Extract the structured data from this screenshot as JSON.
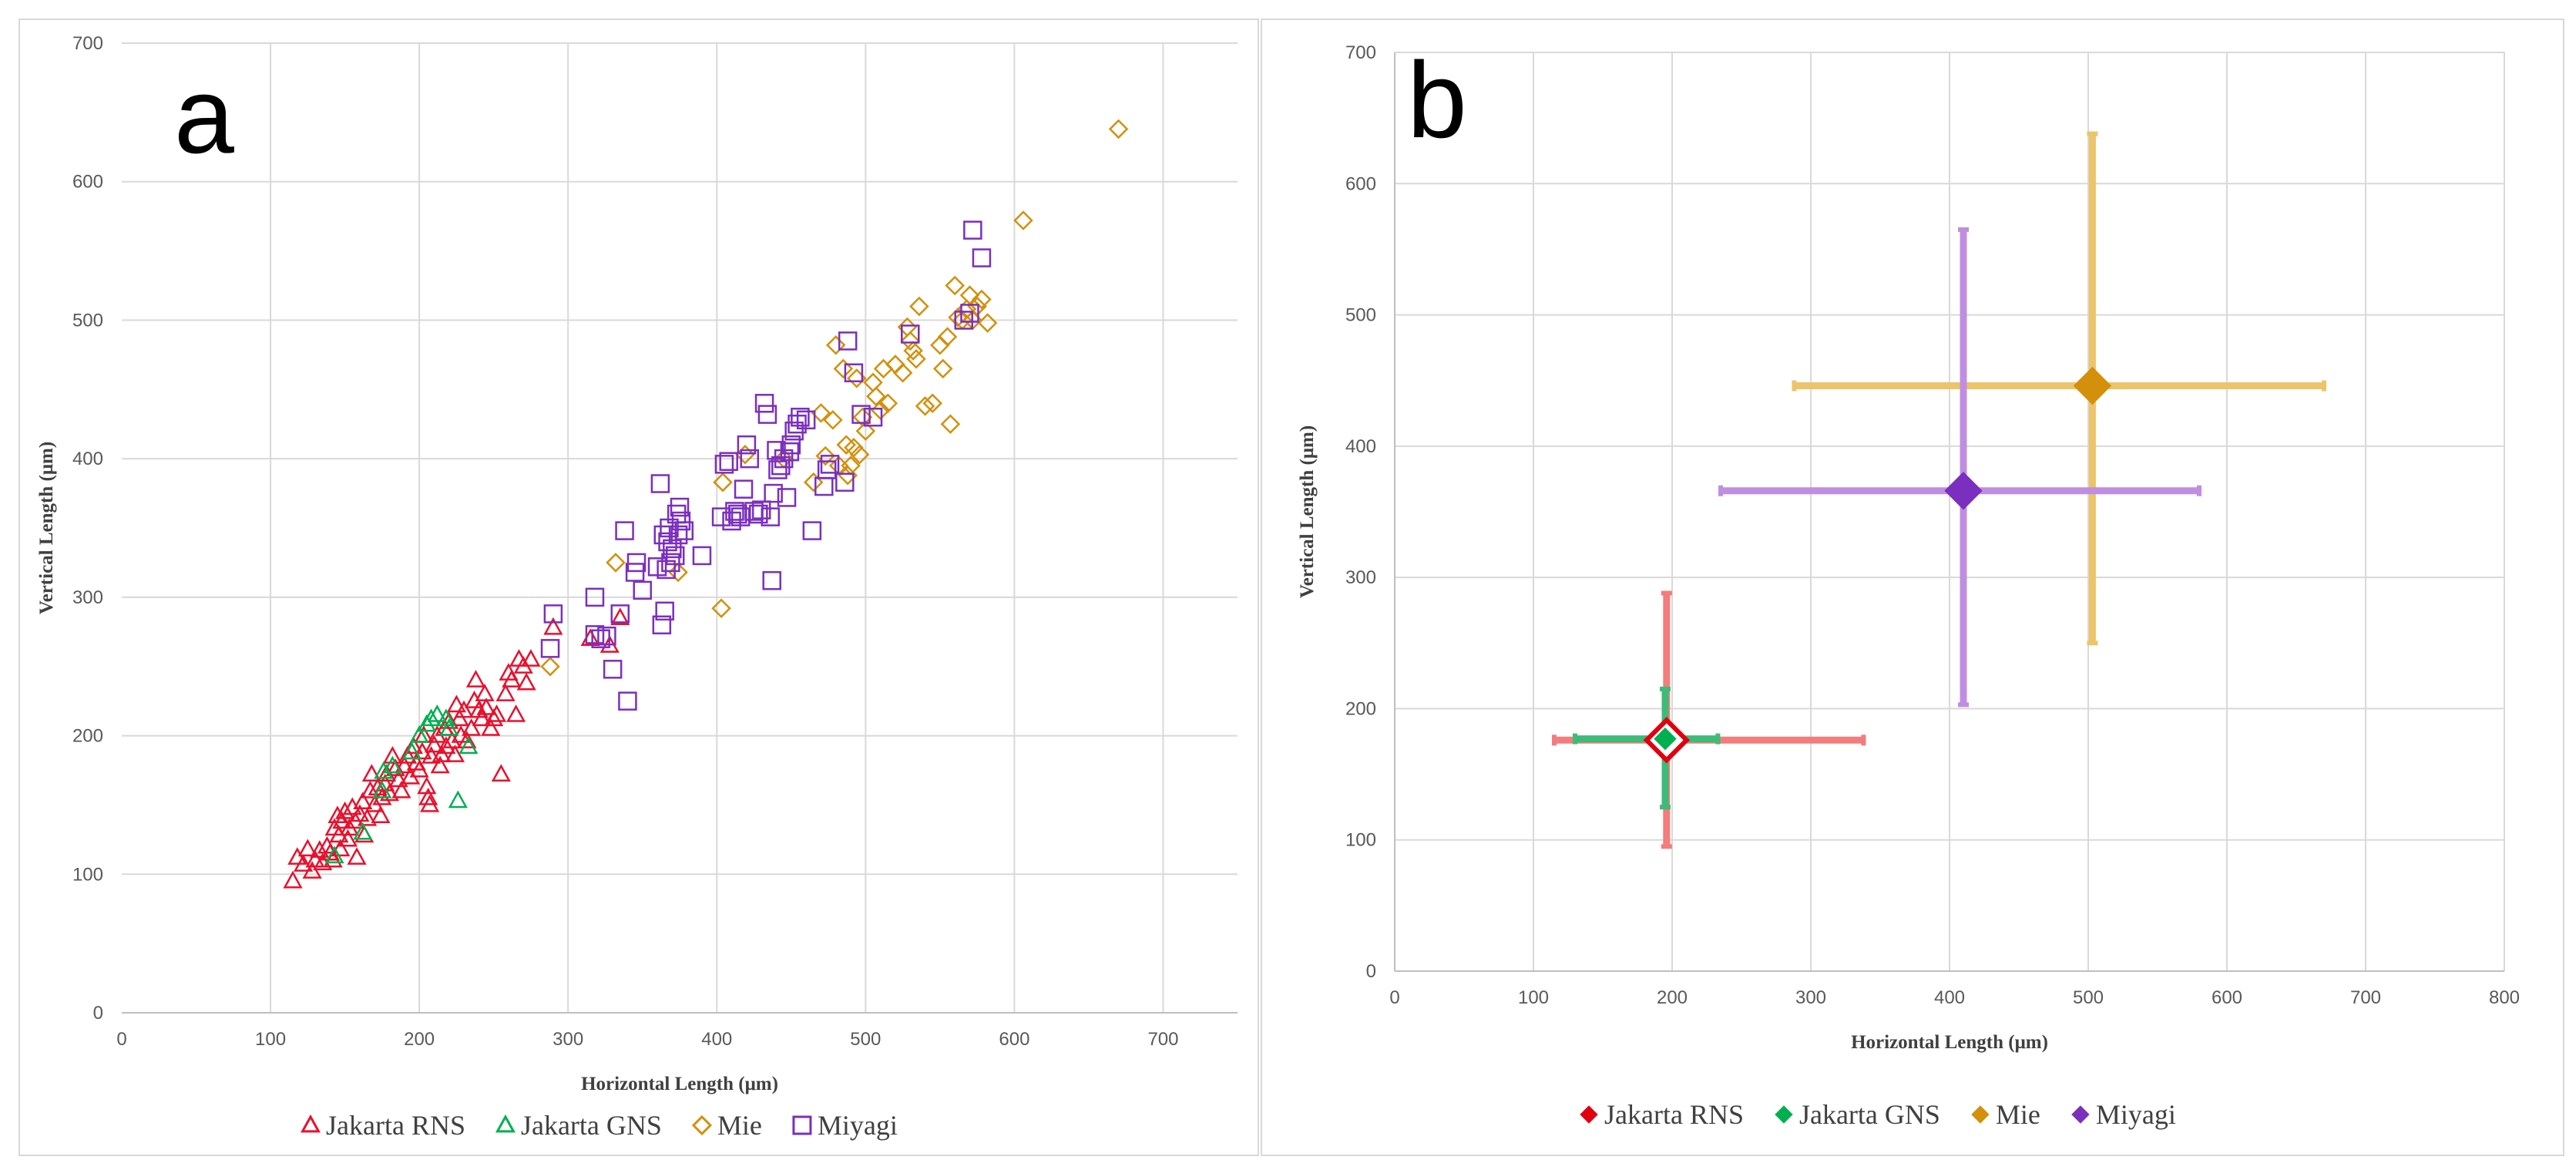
{
  "chart_data": [
    {
      "panel": "a",
      "type": "scatter",
      "panel_label": "a",
      "xlabel": "Horizontal Length (μm)",
      "ylabel": "Vertical Length (μm)",
      "xlim": [
        0,
        750
      ],
      "ylim": [
        0,
        700
      ],
      "xticks": [
        0,
        100,
        200,
        300,
        400,
        500,
        600,
        700
      ],
      "yticks": [
        0,
        100,
        200,
        300,
        400,
        500,
        600,
        700
      ],
      "grid": true,
      "legend_position": "bottom",
      "series": [
        {
          "name": "Jakarta RNS",
          "color": "#e8112d",
          "marker": "triangle",
          "points": [
            [
              115,
              95
            ],
            [
              118,
              112
            ],
            [
              122,
              107
            ],
            [
              125,
              118
            ],
            [
              128,
              102
            ],
            [
              130,
              110
            ],
            [
              133,
              117
            ],
            [
              135,
              108
            ],
            [
              138,
              120
            ],
            [
              140,
              115
            ],
            [
              142,
              110
            ],
            [
              143,
              133
            ],
            [
              145,
              142
            ],
            [
              146,
              128
            ],
            [
              147,
              118
            ],
            [
              148,
              138
            ],
            [
              150,
              145
            ],
            [
              152,
              125
            ],
            [
              153,
              133
            ],
            [
              155,
              148
            ],
            [
              157,
              138
            ],
            [
              158,
              112
            ],
            [
              160,
              143
            ],
            [
              162,
              152
            ],
            [
              163,
              128
            ],
            [
              165,
              140
            ],
            [
              167,
              160
            ],
            [
              168,
              172
            ],
            [
              170,
              150
            ],
            [
              172,
              162
            ],
            [
              174,
              142
            ],
            [
              175,
              155
            ],
            [
              177,
              165
            ],
            [
              178,
              172
            ],
            [
              180,
              158
            ],
            [
              182,
              185
            ],
            [
              184,
              176
            ],
            [
              186,
              168
            ],
            [
              188,
              160
            ],
            [
              190,
              178
            ],
            [
              192,
              185
            ],
            [
              194,
              170
            ],
            [
              196,
              192
            ],
            [
              198,
              180
            ],
            [
              200,
              175
            ],
            [
              202,
              188
            ],
            [
              203,
              200
            ],
            [
              205,
              163
            ],
            [
              206,
              155
            ],
            [
              207,
              150
            ],
            [
              208,
              185
            ],
            [
              210,
              193
            ],
            [
              212,
              200
            ],
            [
              214,
              178
            ],
            [
              215,
              186
            ],
            [
              217,
              205
            ],
            [
              218,
              192
            ],
            [
              220,
              210
            ],
            [
              222,
              196
            ],
            [
              224,
              186
            ],
            [
              225,
              222
            ],
            [
              227,
              212
            ],
            [
              228,
              200
            ],
            [
              230,
              218
            ],
            [
              232,
              196
            ],
            [
              235,
              205
            ],
            [
              237,
              225
            ],
            [
              238,
              240
            ],
            [
              240,
              218
            ],
            [
              242,
              212
            ],
            [
              244,
              230
            ],
            [
              245,
              220
            ],
            [
              248,
              205
            ],
            [
              250,
              212
            ],
            [
              252,
              215
            ],
            [
              255,
              172
            ],
            [
              258,
              230
            ],
            [
              260,
              245
            ],
            [
              262,
              240
            ],
            [
              265,
              215
            ],
            [
              267,
              255
            ],
            [
              270,
              250
            ],
            [
              272,
              238
            ],
            [
              275,
              255
            ],
            [
              290,
              278
            ],
            [
              315,
              270
            ],
            [
              328,
              265
            ],
            [
              335,
              285
            ]
          ]
        },
        {
          "name": "Jakarta GNS",
          "color": "#00b050",
          "marker": "triangle",
          "points": [
            [
              143,
              113
            ],
            [
              162,
              130
            ],
            [
              175,
              160
            ],
            [
              176,
              174
            ],
            [
              182,
              178
            ],
            [
              195,
              188
            ],
            [
              200,
              200
            ],
            [
              205,
              208
            ],
            [
              208,
              212
            ],
            [
              212,
              215
            ],
            [
              218,
              212
            ],
            [
              220,
              205
            ],
            [
              226,
              153
            ],
            [
              233,
              192
            ]
          ]
        },
        {
          "name": "Mie",
          "color": "#d4900a",
          "marker": "diamond",
          "points": [
            [
              288,
              250
            ],
            [
              332,
              325
            ],
            [
              374,
              318
            ],
            [
              403,
              292
            ],
            [
              404,
              383
            ],
            [
              419,
              403
            ],
            [
              445,
              400
            ],
            [
              465,
              383
            ],
            [
              470,
              433
            ],
            [
              473,
              402
            ],
            [
              478,
              428
            ],
            [
              480,
              482
            ],
            [
              482,
              395
            ],
            [
              485,
              465
            ],
            [
              487,
              410
            ],
            [
              488,
              388
            ],
            [
              490,
              395
            ],
            [
              492,
              408
            ],
            [
              494,
              458
            ],
            [
              496,
              403
            ],
            [
              498,
              430
            ],
            [
              500,
              420
            ],
            [
              505,
              455
            ],
            [
              507,
              445
            ],
            [
              510,
              435
            ],
            [
              512,
              465
            ],
            [
              515,
              440
            ],
            [
              520,
              468
            ],
            [
              525,
              462
            ],
            [
              528,
              495
            ],
            [
              530,
              485
            ],
            [
              532,
              478
            ],
            [
              534,
              472
            ],
            [
              536,
              510
            ],
            [
              540,
              438
            ],
            [
              545,
              440
            ],
            [
              550,
              482
            ],
            [
              552,
              465
            ],
            [
              555,
              488
            ],
            [
              557,
              425
            ],
            [
              560,
              525
            ],
            [
              562,
              502
            ],
            [
              565,
              500
            ],
            [
              568,
              508
            ],
            [
              570,
              518
            ],
            [
              572,
              500
            ],
            [
              575,
              510
            ],
            [
              578,
              515
            ],
            [
              582,
              498
            ],
            [
              606,
              572
            ],
            [
              670,
              638
            ]
          ]
        },
        {
          "name": "Miyagi",
          "color": "#7b2fbe",
          "marker": "square",
          "points": [
            [
              290,
              288
            ],
            [
              288,
              263
            ],
            [
              318,
              273
            ],
            [
              318,
              300
            ],
            [
              322,
              270
            ],
            [
              326,
              272
            ],
            [
              330,
              248
            ],
            [
              335,
              288
            ],
            [
              338,
              348
            ],
            [
              340,
              225
            ],
            [
              345,
              318
            ],
            [
              346,
              325
            ],
            [
              350,
              305
            ],
            [
              360,
              322
            ],
            [
              362,
              382
            ],
            [
              363,
              280
            ],
            [
              364,
              345
            ],
            [
              365,
              290
            ],
            [
              366,
              320
            ],
            [
              367,
              340
            ],
            [
              368,
              350
            ],
            [
              369,
              325
            ],
            [
              370,
              335
            ],
            [
              372,
              330
            ],
            [
              373,
              360
            ],
            [
              374,
              345
            ],
            [
              375,
              365
            ],
            [
              376,
              355
            ],
            [
              378,
              348
            ],
            [
              390,
              330
            ],
            [
              403,
              358
            ],
            [
              405,
              396
            ],
            [
              408,
              398
            ],
            [
              410,
              355
            ],
            [
              412,
              362
            ],
            [
              414,
              360
            ],
            [
              416,
              358
            ],
            [
              418,
              378
            ],
            [
              420,
              410
            ],
            [
              422,
              400
            ],
            [
              425,
              362
            ],
            [
              428,
              360
            ],
            [
              430,
              363
            ],
            [
              432,
              440
            ],
            [
              434,
              432
            ],
            [
              436,
              358
            ],
            [
              437,
              312
            ],
            [
              438,
              375
            ],
            [
              440,
              406
            ],
            [
              441,
              392
            ],
            [
              443,
              395
            ],
            [
              445,
              400
            ],
            [
              447,
              372
            ],
            [
              449,
              405
            ],
            [
              450,
              410
            ],
            [
              452,
              420
            ],
            [
              454,
              425
            ],
            [
              456,
              430
            ],
            [
              460,
              428
            ],
            [
              464,
              348
            ],
            [
              472,
              380
            ],
            [
              474,
              392
            ],
            [
              476,
              396
            ],
            [
              486,
              383
            ],
            [
              488,
              485
            ],
            [
              492,
              462
            ],
            [
              497,
              432
            ],
            [
              505,
              430
            ],
            [
              530,
              490
            ],
            [
              566,
              500
            ],
            [
              570,
              505
            ],
            [
              572,
              565
            ],
            [
              578,
              545
            ]
          ]
        }
      ]
    },
    {
      "panel": "b",
      "type": "scatter",
      "panel_label": "b",
      "xlabel": "Horizontal Length (μm)",
      "ylabel": "Vertical Length (μm)",
      "xlim": [
        0,
        800
      ],
      "ylim": [
        0,
        700
      ],
      "xticks": [
        0,
        100,
        200,
        300,
        400,
        500,
        600,
        700,
        800
      ],
      "yticks": [
        0,
        100,
        200,
        300,
        400,
        500,
        600,
        700
      ],
      "grid": true,
      "legend_position": "bottom",
      "series": [
        {
          "name": "Jakarta RNS",
          "color": "#e00010",
          "error_color": "#f47c7c",
          "marker": "diamond",
          "x": 196,
          "y": 176,
          "x_range": [
            115,
            338
          ],
          "y_range": [
            95,
            288
          ]
        },
        {
          "name": "Jakarta GNS",
          "color": "#00b050",
          "error_color": "#3dbb78",
          "marker": "diamond",
          "x": 195,
          "y": 177,
          "x_range": [
            130,
            233
          ],
          "y_range": [
            125,
            215
          ]
        },
        {
          "name": "Mie",
          "color": "#d4900a",
          "error_color": "#ecc46a",
          "marker": "diamond",
          "x": 503,
          "y": 446,
          "x_range": [
            288,
            670
          ],
          "y_range": [
            250,
            638
          ]
        },
        {
          "name": "Miyagi",
          "color": "#7b2fbe",
          "error_color": "#c08ee0",
          "marker": "diamond",
          "x": 410,
          "y": 366,
          "x_range": [
            235,
            580
          ],
          "y_range": [
            203,
            565
          ]
        }
      ]
    }
  ]
}
